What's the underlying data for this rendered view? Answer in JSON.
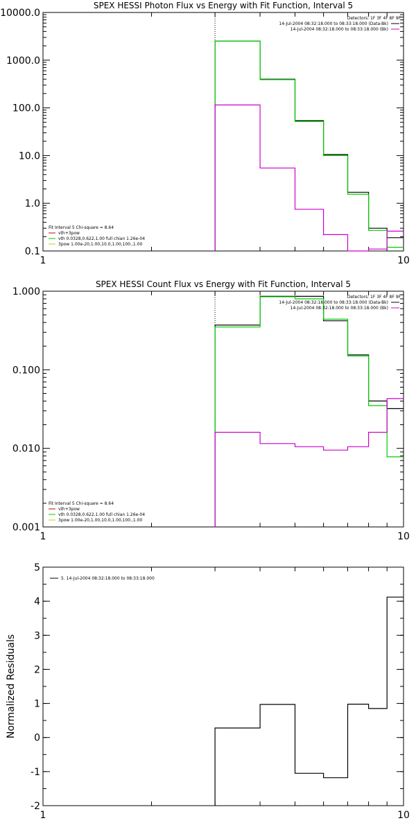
{
  "chart_data": [
    {
      "type": "line",
      "step": true,
      "title": "SPEX HESSI Photon Flux vs Energy with Fit Function, Interval 5",
      "xscale": "log",
      "yscale": "log",
      "xlim": [
        1,
        10
      ],
      "ylim": [
        0.1,
        10000
      ],
      "xticks": [
        1,
        10
      ],
      "xtick_labels": [
        "1",
        "10"
      ],
      "yticks": [
        0.1,
        1,
        10,
        100,
        1000,
        10000
      ],
      "ytick_labels": [
        "0.1",
        "1.0",
        "10.0",
        "100.0",
        "1000.0",
        "10000.0"
      ],
      "vline": 3,
      "detectors": "Detectors: 1F 3F 4F 8F 9F",
      "legend_top": [
        {
          "text": "14-Jul-2004 08:32:18.000 to 08:33:18.000 (Data-Bk)",
          "color": "#000000"
        },
        {
          "text": "14-Jul-2004 08:32:18.000 to 08:33:18.000 (Bk)",
          "color": "#cc00cc"
        }
      ],
      "legend_bottom": [
        {
          "text": "Fit Interval 5   Chi-square = 8.64",
          "color": ""
        },
        {
          "text": "vth+3pow",
          "color": "#cc0000"
        },
        {
          "text": "vth 0.0328,0.622,1.00  full chian 1.26e-04",
          "color": "#00cc00"
        },
        {
          "text": "3pow 1.00e-20,1.00,10.0,1.00,100.,1.00",
          "color": "#cccc00"
        }
      ],
      "edges": [
        3,
        4,
        5,
        6,
        7,
        8,
        9,
        10
      ],
      "series": [
        {
          "color": "#000000",
          "values": [
            2500,
            400,
            54,
            10.5,
            1.7,
            0.3,
            0.19
          ]
        },
        {
          "color": "#00cc00",
          "values": [
            2500,
            390,
            52,
            10.0,
            1.55,
            0.27,
            0.12
          ]
        },
        {
          "color": "#cc00cc",
          "values": [
            115,
            5.5,
            0.75,
            0.22,
            0.1,
            0.11,
            0.26
          ]
        }
      ]
    },
    {
      "type": "line",
      "step": true,
      "title": "SPEX HESSI Count Flux vs Energy with Fit Function, Interval 5",
      "xscale": "log",
      "yscale": "log",
      "xlim": [
        1,
        10
      ],
      "ylim": [
        0.001,
        1
      ],
      "xticks": [
        1,
        10
      ],
      "xtick_labels": [
        "1",
        "10"
      ],
      "yticks": [
        0.001,
        0.01,
        0.1,
        1
      ],
      "ytick_labels": [
        "0.001",
        "0.010",
        "0.100",
        "1.000"
      ],
      "vline": 3,
      "detectors": "Detectors: 1F 3F 4F 8F 9F",
      "legend_top": [
        {
          "text": "14-Jul-2004 08:32:18.000 to 08:33:18.000 (Data-Bk)",
          "color": "#000000"
        },
        {
          "text": "14-Jul-2004 08:32:18.000 to 08:33:18.000 (Bk)",
          "color": "#cc00cc"
        }
      ],
      "legend_bottom": [
        {
          "text": "Fit Interval 5   Chi-square = 8.64",
          "color": ""
        },
        {
          "text": "vth+3pow",
          "color": "#cc0000"
        },
        {
          "text": "vth 0.0328,0.622,1.00  full chian 1.26e-04",
          "color": "#00cc00"
        },
        {
          "text": "3pow 1.00e-20,1.00,10.0,1.00,100.,1.00",
          "color": "#cccc00"
        }
      ],
      "edges": [
        3,
        4,
        5,
        6,
        7,
        8,
        9,
        10
      ],
      "series": [
        {
          "color": "#000000",
          "values": [
            0.37,
            0.86,
            0.86,
            0.42,
            0.155,
            0.04,
            0.032
          ]
        },
        {
          "color": "#00cc00",
          "values": [
            0.35,
            0.85,
            0.8,
            0.44,
            0.15,
            0.035,
            0.0078
          ]
        },
        {
          "color": "#cc00cc",
          "values": [
            0.016,
            0.0115,
            0.0105,
            0.0095,
            0.0105,
            0.016,
            0.043
          ]
        }
      ]
    },
    {
      "type": "line",
      "step": true,
      "title": "",
      "ylabel": "Normalized Residuals",
      "xscale": "log",
      "yscale": "linear",
      "xlim": [
        1,
        10
      ],
      "ylim": [
        -2,
        5
      ],
      "xticks": [
        1,
        10
      ],
      "xtick_labels": [
        "1",
        "10"
      ],
      "yticks": [
        -2,
        -1,
        0,
        1,
        2,
        3,
        4,
        5
      ],
      "ytick_labels": [
        "-2",
        "-1",
        "0",
        "1",
        "2",
        "3",
        "4",
        "5"
      ],
      "legend_top": [
        {
          "text": "5. 14-Jul-2004 08:32:18.000 to 08:33:18.000",
          "color": "#000000"
        }
      ],
      "edges": [
        3,
        4,
        5,
        6,
        7,
        8,
        9,
        10
      ],
      "series": [
        {
          "color": "#000000",
          "values": [
            0.28,
            0.97,
            -1.05,
            -1.18,
            0.98,
            0.85,
            4.12
          ]
        }
      ]
    }
  ]
}
